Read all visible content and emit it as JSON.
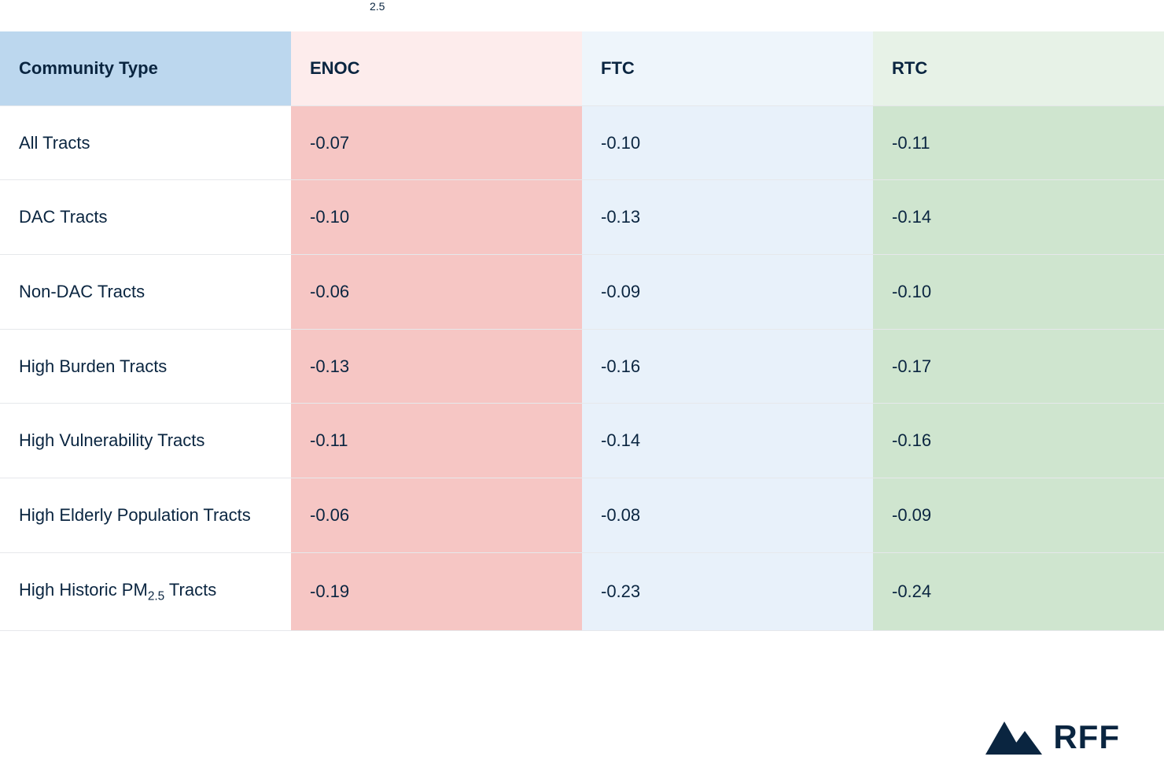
{
  "table": {
    "type": "table",
    "columns": [
      {
        "key": "community",
        "label": "Community Type",
        "header_bg": "#bcd7ee",
        "body_bg": "#ffffff"
      },
      {
        "key": "enoc",
        "label": "ENOC",
        "header_bg": "#fdecec",
        "body_bg": "#f6c6c4"
      },
      {
        "key": "ftc",
        "label": "FTC",
        "header_bg": "#eef5fb",
        "body_bg": "#e8f1fa"
      },
      {
        "key": "rtc",
        "label": "RTC",
        "header_bg": "#e7f2e7",
        "body_bg": "#cfe5cf"
      }
    ],
    "rows": [
      {
        "label": "All Tracts",
        "enoc": "-0.07",
        "ftc": "-0.10",
        "rtc": "-0.11"
      },
      {
        "label": "DAC Tracts",
        "enoc": "-0.10",
        "ftc": "-0.13",
        "rtc": "-0.14"
      },
      {
        "label": "Non-DAC Tracts",
        "enoc": "-0.06",
        "ftc": "-0.09",
        "rtc": "-0.10"
      },
      {
        "label": "High Burden Tracts",
        "enoc": "-0.13",
        "ftc": "-0.16",
        "rtc": "-0.17"
      },
      {
        "label": "High Vulnerability Tracts",
        "enoc": "-0.11",
        "ftc": "-0.14",
        "rtc": "-0.16"
      },
      {
        "label_html": "High Elderly Population Tracts",
        "label": "High Elderly Population Tracts",
        "enoc": "-0.06",
        "ftc": "-0.08",
        "rtc": "-0.09"
      },
      {
        "label_html": "High Historic PM<sub>2.5</sub> Tracts",
        "label": "High Historic PM2.5 Tracts",
        "enoc": "-0.19",
        "ftc": "-0.23",
        "rtc": "-0.24"
      }
    ],
    "border_color": "#e6e8eb",
    "text_color": "#0a2540",
    "header_fontsize": 22,
    "body_fontsize": 22,
    "cell_padding_v": 32,
    "cell_padding_h": 24
  },
  "logo": {
    "text": "RFF",
    "icon_color": "#0a2540",
    "text_color": "#0a2540",
    "fontsize": 42
  },
  "top_fragment": "2.5"
}
